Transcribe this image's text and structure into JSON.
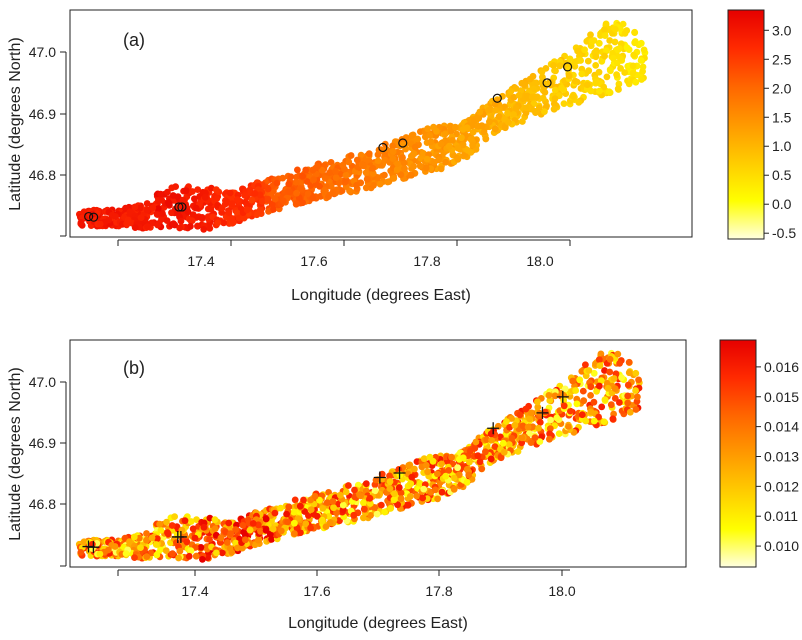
{
  "chart_data": [
    {
      "type": "scatter",
      "panel_label": "(a)",
      "xlabel": "Longitude (degrees East)",
      "ylabel": "Latitude (degrees North)",
      "xlim": [
        17.24,
        18.24
      ],
      "ylim": [
        46.705,
        47.06
      ],
      "x_ticks": [
        "17.4",
        "17.6",
        "17.8",
        "18.0"
      ],
      "x_tick_values": [
        17.4,
        17.6,
        17.8,
        18.0
      ],
      "y_ticks": [
        "46.8",
        "46.9",
        "47.0"
      ],
      "y_tick_values": [
        46.8,
        46.9,
        47.0
      ],
      "colorbar": {
        "range": [
          -0.6,
          3.35
        ],
        "ticks": [
          "-0.5",
          "0.0",
          "0.5",
          "1.0",
          "1.5",
          "2.0",
          "2.5",
          "3.0"
        ],
        "tick_values": [
          -0.5,
          0.0,
          0.5,
          1.0,
          1.5,
          2.0,
          2.5,
          3.0
        ],
        "colors": [
          "#ffffe0",
          "#ffff00",
          "#ffcc00",
          "#ff9900",
          "#ff6600",
          "#ff2a00",
          "#e60000"
        ]
      },
      "markers": {
        "symbol": "circle",
        "points": [
          {
            "x": 17.27,
            "y": 46.737
          },
          {
            "x": 17.278,
            "y": 46.736
          },
          {
            "x": 17.415,
            "y": 46.752
          },
          {
            "x": 17.42,
            "y": 46.752
          },
          {
            "x": 17.743,
            "y": 46.845
          },
          {
            "x": 17.775,
            "y": 46.852
          },
          {
            "x": 17.927,
            "y": 46.922
          },
          {
            "x": 18.007,
            "y": 46.946
          },
          {
            "x": 18.04,
            "y": 46.971
          }
        ]
      },
      "grid": false,
      "legend": "right"
    },
    {
      "type": "scatter",
      "panel_label": "(b)",
      "xlabel": "Longitude (degrees East)",
      "ylabel": "Latitude (degrees North)",
      "xlim": [
        17.24,
        18.24
      ],
      "ylim": [
        46.705,
        47.06
      ],
      "x_ticks": [
        "17.4",
        "17.6",
        "17.8",
        "18.0"
      ],
      "x_tick_values": [
        17.4,
        17.6,
        17.8,
        18.0
      ],
      "y_ticks": [
        "46.8",
        "46.9",
        "47.0"
      ],
      "y_tick_values": [
        46.8,
        46.9,
        47.0
      ],
      "colorbar": {
        "range": [
          0.0093,
          0.0169
        ],
        "ticks": [
          "0.010",
          "0.011",
          "0.012",
          "0.013",
          "0.014",
          "0.015",
          "0.016"
        ],
        "tick_values": [
          0.01,
          0.011,
          0.012,
          0.013,
          0.014,
          0.015,
          0.016
        ],
        "colors": [
          "#ffffe0",
          "#ffff00",
          "#ffcc00",
          "#ff9900",
          "#ff6600",
          "#ff2a00",
          "#e60000"
        ]
      },
      "markers": {
        "symbol": "plus",
        "points": [
          {
            "x": 17.27,
            "y": 46.737
          },
          {
            "x": 17.278,
            "y": 46.736
          },
          {
            "x": 17.415,
            "y": 46.752
          },
          {
            "x": 17.42,
            "y": 46.752
          },
          {
            "x": 17.743,
            "y": 46.845
          },
          {
            "x": 17.775,
            "y": 46.852
          },
          {
            "x": 17.927,
            "y": 46.922
          },
          {
            "x": 18.007,
            "y": 46.946
          },
          {
            "x": 18.04,
            "y": 46.971
          }
        ]
      },
      "grid": false,
      "legend": "right"
    }
  ]
}
